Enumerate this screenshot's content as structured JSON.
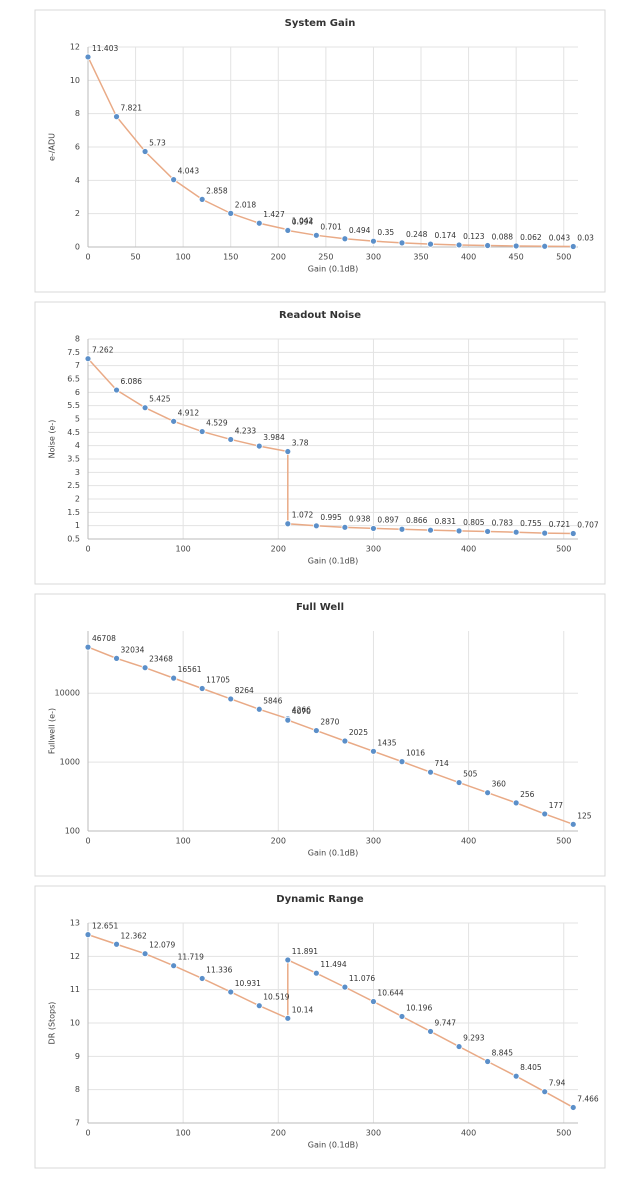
{
  "chart_data": [
    {
      "type": "line",
      "title": "System Gain",
      "xlabel": "Gain (0.1dB)",
      "ylabel": "e-/ADU",
      "x": [
        0,
        30,
        60,
        90,
        120,
        150,
        180,
        210,
        210,
        240,
        270,
        300,
        330,
        360,
        390,
        420,
        450,
        480,
        510
      ],
      "values": [
        11.403,
        7.821,
        5.73,
        4.043,
        2.858,
        2.018,
        1.427,
        1.042,
        0.994,
        0.701,
        0.494,
        0.35,
        0.248,
        0.174,
        0.123,
        0.088,
        0.062,
        0.043,
        0.03
      ],
      "color": "#e9aa86",
      "marker_color": "#5b8fc9",
      "xlim": [
        0,
        515
      ],
      "xticks": [
        0,
        50,
        100,
        150,
        200,
        250,
        300,
        350,
        400,
        450,
        500
      ],
      "ylim": [
        0,
        12
      ],
      "yticks": [
        0,
        2,
        4,
        6,
        8,
        10,
        12
      ],
      "grid": true
    },
    {
      "type": "line",
      "title": "Readout Noise",
      "xlabel": "Gain (0.1dB)",
      "ylabel": "Noise (e-)",
      "x": [
        0,
        30,
        60,
        90,
        120,
        150,
        180,
        210,
        210,
        240,
        270,
        300,
        330,
        360,
        390,
        420,
        450,
        480,
        510
      ],
      "values": [
        7.262,
        6.086,
        5.425,
        4.912,
        4.529,
        4.233,
        3.984,
        3.78,
        1.072,
        0.995,
        0.938,
        0.897,
        0.866,
        0.831,
        0.805,
        0.783,
        0.755,
        0.721,
        0.707
      ],
      "color": "#e9aa86",
      "marker_color": "#5b8fc9",
      "xlim": [
        0,
        515
      ],
      "xticks": [
        0,
        100,
        200,
        300,
        400,
        500
      ],
      "ylim": [
        0.5,
        8
      ],
      "yticks": [
        0.5,
        1,
        1.5,
        2,
        2.5,
        3,
        3.5,
        4,
        4.5,
        5,
        5.5,
        6,
        6.5,
        7,
        7.5,
        8
      ],
      "grid": true
    },
    {
      "type": "line",
      "title": "Full Well",
      "xlabel": "Gain (0.1dB)",
      "ylabel": "Fullwell (e-)",
      "x": [
        0,
        30,
        60,
        90,
        120,
        150,
        180,
        210,
        210,
        240,
        270,
        300,
        330,
        360,
        390,
        420,
        450,
        480,
        510
      ],
      "values": [
        46708,
        32034,
        23468,
        16561,
        11705,
        8264,
        5846,
        4266,
        4070,
        2870,
        2025,
        1435,
        1016,
        714,
        505,
        360,
        256,
        177,
        125
      ],
      "color": "#e9aa86",
      "marker_color": "#5b8fc9",
      "xlim": [
        0,
        515
      ],
      "xticks": [
        0,
        100,
        200,
        300,
        400,
        500
      ],
      "ylim": [
        100,
        80000
      ],
      "yticks": [
        100,
        1000,
        10000
      ],
      "log_scale": true,
      "grid": true
    },
    {
      "type": "line",
      "title": "Dynamic Range",
      "xlabel": "Gain (0.1dB)",
      "ylabel": "DR (Stops)",
      "x": [
        0,
        30,
        60,
        90,
        120,
        150,
        180,
        210,
        210,
        240,
        270,
        300,
        330,
        360,
        390,
        420,
        450,
        480,
        510
      ],
      "values": [
        12.651,
        12.362,
        12.079,
        11.719,
        11.336,
        10.931,
        10.519,
        10.14,
        11.891,
        11.494,
        11.076,
        10.644,
        10.196,
        9.747,
        9.293,
        8.845,
        8.405,
        7.94,
        7.466
      ],
      "color": "#e9aa86",
      "marker_color": "#5b8fc9",
      "xlim": [
        0,
        515
      ],
      "xticks": [
        0,
        100,
        200,
        300,
        400,
        500
      ],
      "ylim": [
        7,
        13
      ],
      "yticks": [
        7,
        8,
        9,
        10,
        11,
        12,
        13
      ],
      "grid": true
    }
  ]
}
